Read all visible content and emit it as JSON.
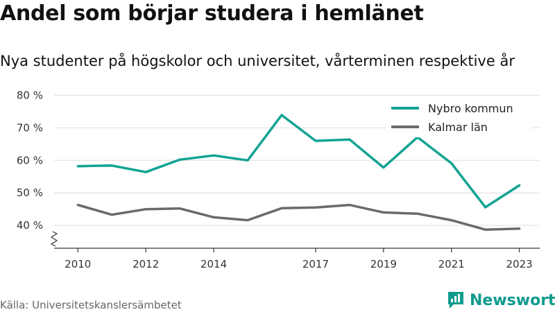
{
  "title": "Andel som börjar studera i hemlänet",
  "subtitle": "Nya studenter på högskolor och universitet, vårterminen respektive år",
  "source": "Källa: Universitetskanslersämbetet",
  "brand": {
    "name": "Newsworthy",
    "icon": "newsworthy-chart-logo-icon",
    "color": "#0f9a8e"
  },
  "colors": {
    "nybro": "#12a393",
    "kalmar": "#6a6a6a",
    "grid": "#dddddd",
    "axis": "#333333"
  },
  "chart_data": {
    "type": "line",
    "x": [
      2010,
      2011,
      2012,
      2013,
      2014,
      2015,
      2016,
      2017,
      2018,
      2019,
      2020,
      2021,
      2022,
      2023
    ],
    "x_tick_values": [
      2010,
      2012,
      2014,
      2017,
      2019,
      2021,
      2023
    ],
    "x_tick_labels": [
      "2010",
      "2012",
      "2014",
      "2017",
      "2019",
      "2021",
      "2023"
    ],
    "y_tick_values": [
      40,
      50,
      60,
      70,
      80
    ],
    "y_tick_labels": [
      "40 %",
      "50 %",
      "60 %",
      "70 %",
      "80 %"
    ],
    "xlim": [
      2009.3,
      2023.6
    ],
    "ylim": [
      33,
      82
    ],
    "y_axis_break": true,
    "grid": true,
    "legend_position": "top-right",
    "series": [
      {
        "name": "Nybro kommun",
        "color": "#12a393",
        "values": [
          58.2,
          58.4,
          56.4,
          60.2,
          61.5,
          60.0,
          73.9,
          66.0,
          66.4,
          57.8,
          67.1,
          59.1,
          45.6,
          52.3
        ]
      },
      {
        "name": "Kalmar län",
        "color": "#6a6a6a",
        "values": [
          46.3,
          43.3,
          45.0,
          45.2,
          42.5,
          41.6,
          45.3,
          45.5,
          46.3,
          44.0,
          43.6,
          41.6,
          38.7,
          39.0
        ]
      }
    ]
  }
}
